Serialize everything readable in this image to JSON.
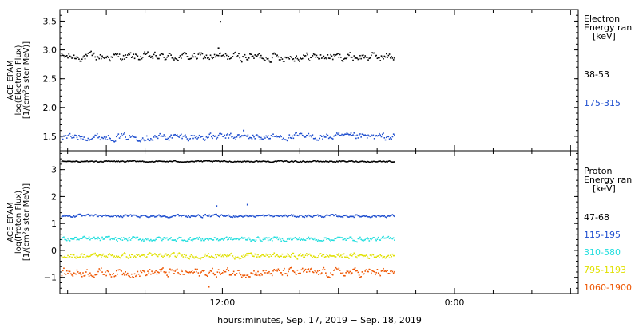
{
  "chart_data": [
    {
      "type": "scatter",
      "ylabel_lines": [
        "ACE EPAM",
        "log(Electron Flux)",
        "[1/(cm²s ster MeV)]"
      ],
      "ylim": [
        1.25,
        3.7
      ],
      "yticks": [
        1.5,
        2.0,
        2.5,
        3.0,
        3.5
      ],
      "ytick_labels": [
        "1.5",
        "2.0",
        "2.5",
        "3.0",
        "3.5"
      ],
      "legend_title": [
        "Electron",
        "Energy ran",
        "[keV]"
      ],
      "series": [
        {
          "name": "38-53",
          "color": "#000000",
          "base": 2.88,
          "spread": 0.06
        },
        {
          "name": "175-315",
          "color": "#1f4fcf",
          "base": 1.49,
          "spread": 0.05
        }
      ],
      "outliers": [
        {
          "x_hour": 11.9,
          "y": 3.49,
          "series": "38-53"
        },
        {
          "x_hour": 11.8,
          "y": 3.03,
          "series": "38-53"
        },
        {
          "x_hour": 13.1,
          "y": 1.6,
          "series": "175-315"
        }
      ]
    },
    {
      "type": "scatter",
      "ylabel_lines": [
        "ACE EPAM",
        "log(Proton Flux)",
        "[1/(cm²s ster MeV)]"
      ],
      "ylim": [
        -1.6,
        3.7
      ],
      "yticks": [
        -1,
        0,
        1,
        2,
        3
      ],
      "ytick_labels": [
        "−1",
        "0",
        "1",
        "2",
        "3"
      ],
      "legend_title": [
        "Proton",
        "Energy ran",
        "[keV]"
      ],
      "series": [
        {
          "name": "47-68",
          "color": "#000000",
          "base": 3.3,
          "spread": 0.02
        },
        {
          "name": "115-195",
          "color": "#1f4fcf",
          "base": 1.28,
          "spread": 0.04
        },
        {
          "name": "310-580",
          "color": "#22dede",
          "base": 0.42,
          "spread": 0.07
        },
        {
          "name": "795-1193",
          "color": "#e0e000",
          "base": -0.2,
          "spread": 0.08
        },
        {
          "name": "1060-1900",
          "color": "#ee5500",
          "base": -0.82,
          "spread": 0.13
        }
      ],
      "outliers": [
        {
          "x_hour": 11.7,
          "y": 1.65,
          "series": "115-195"
        },
        {
          "x_hour": 13.3,
          "y": 1.7,
          "series": "115-195"
        },
        {
          "x_hour": 11.3,
          "y": -1.35,
          "series": "1060-1900"
        }
      ]
    }
  ],
  "x_axis": {
    "label": "hours:minutes, Sep. 17, 2019 − Sep. 18, 2019",
    "range_hours": [
      3.6,
      30.4
    ],
    "data_end_hour": 20.9,
    "ticks": [
      {
        "hour": 12,
        "label": "12:00"
      },
      {
        "hour": 24,
        "label": "0:00"
      }
    ],
    "minor_step_hours": 2
  }
}
